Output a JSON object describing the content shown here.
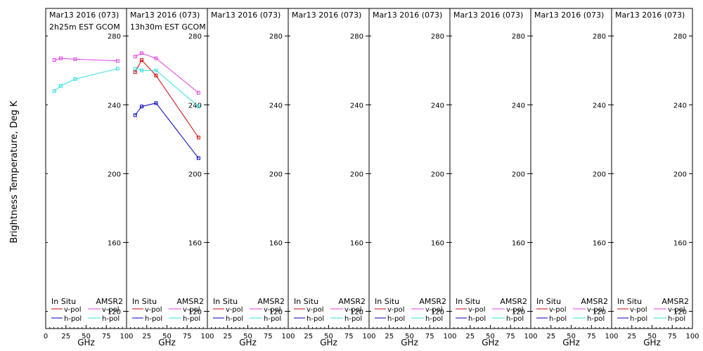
{
  "figure": {
    "ylabel": "Brightness Temperature, Deg K",
    "xlabel": "GHz",
    "legend": {
      "insitu_label": "In Situ",
      "amsr2_label": "AMSR2",
      "vpol_label": "v-pol",
      "hpol_label": "h-pol"
    },
    "colors": {
      "insitu_v": "#d00000",
      "insitu_h": "#0000c0",
      "amsr2_v": "#e040e0",
      "amsr2_h": "#30e0e0",
      "frame": "#000000"
    }
  },
  "chart_data": {
    "type": "line",
    "xlim": [
      0,
      100
    ],
    "ylim": [
      110,
      296
    ],
    "x_ticks": [
      0,
      25,
      50,
      75,
      100
    ],
    "y_ticks": [
      120,
      160,
      200,
      240,
      280
    ],
    "panels": [
      {
        "title": "Mar13 2016 (073)",
        "subtitle": "2h25m EST GCOM",
        "series": [
          {
            "key": "amsr2_v",
            "x": [
              10.65,
              18.7,
              36.5,
              89
            ],
            "y": [
              266,
              267,
              266.5,
              265.5
            ]
          },
          {
            "key": "amsr2_h",
            "x": [
              10.65,
              18.7,
              36.5,
              89
            ],
            "y": [
              248,
              251,
              255,
              261
            ]
          }
        ]
      },
      {
        "title": "Mar13 2016 (073)",
        "subtitle": "13h30m EST GCOM",
        "series": [
          {
            "key": "amsr2_v",
            "x": [
              10.65,
              18.7,
              36.5,
              89
            ],
            "y": [
              268,
              270,
              267,
              247
            ]
          },
          {
            "key": "insitu_v",
            "x": [
              10.65,
              18.7,
              36.5,
              89
            ],
            "y": [
              259,
              266,
              257,
              221
            ]
          },
          {
            "key": "amsr2_h",
            "x": [
              10.65,
              18.7,
              36.5,
              89
            ],
            "y": [
              261,
              260,
              260,
              239
            ]
          },
          {
            "key": "insitu_h",
            "x": [
              10.65,
              18.7,
              36.5,
              89
            ],
            "y": [
              234,
              239,
              241,
              209
            ]
          }
        ]
      },
      {
        "title": "Mar13 2016 (073)",
        "subtitle": "",
        "series": []
      },
      {
        "title": "Mar13 2016 (073)",
        "subtitle": "",
        "series": []
      },
      {
        "title": "Mar13 2016 (073)",
        "subtitle": "",
        "series": []
      },
      {
        "title": "Mar13 2016 (073)",
        "subtitle": "",
        "series": []
      },
      {
        "title": "Mar13 2016 (073)",
        "subtitle": "",
        "series": []
      },
      {
        "title": "Mar13 2016 (073)",
        "subtitle": "",
        "series": []
      }
    ]
  }
}
